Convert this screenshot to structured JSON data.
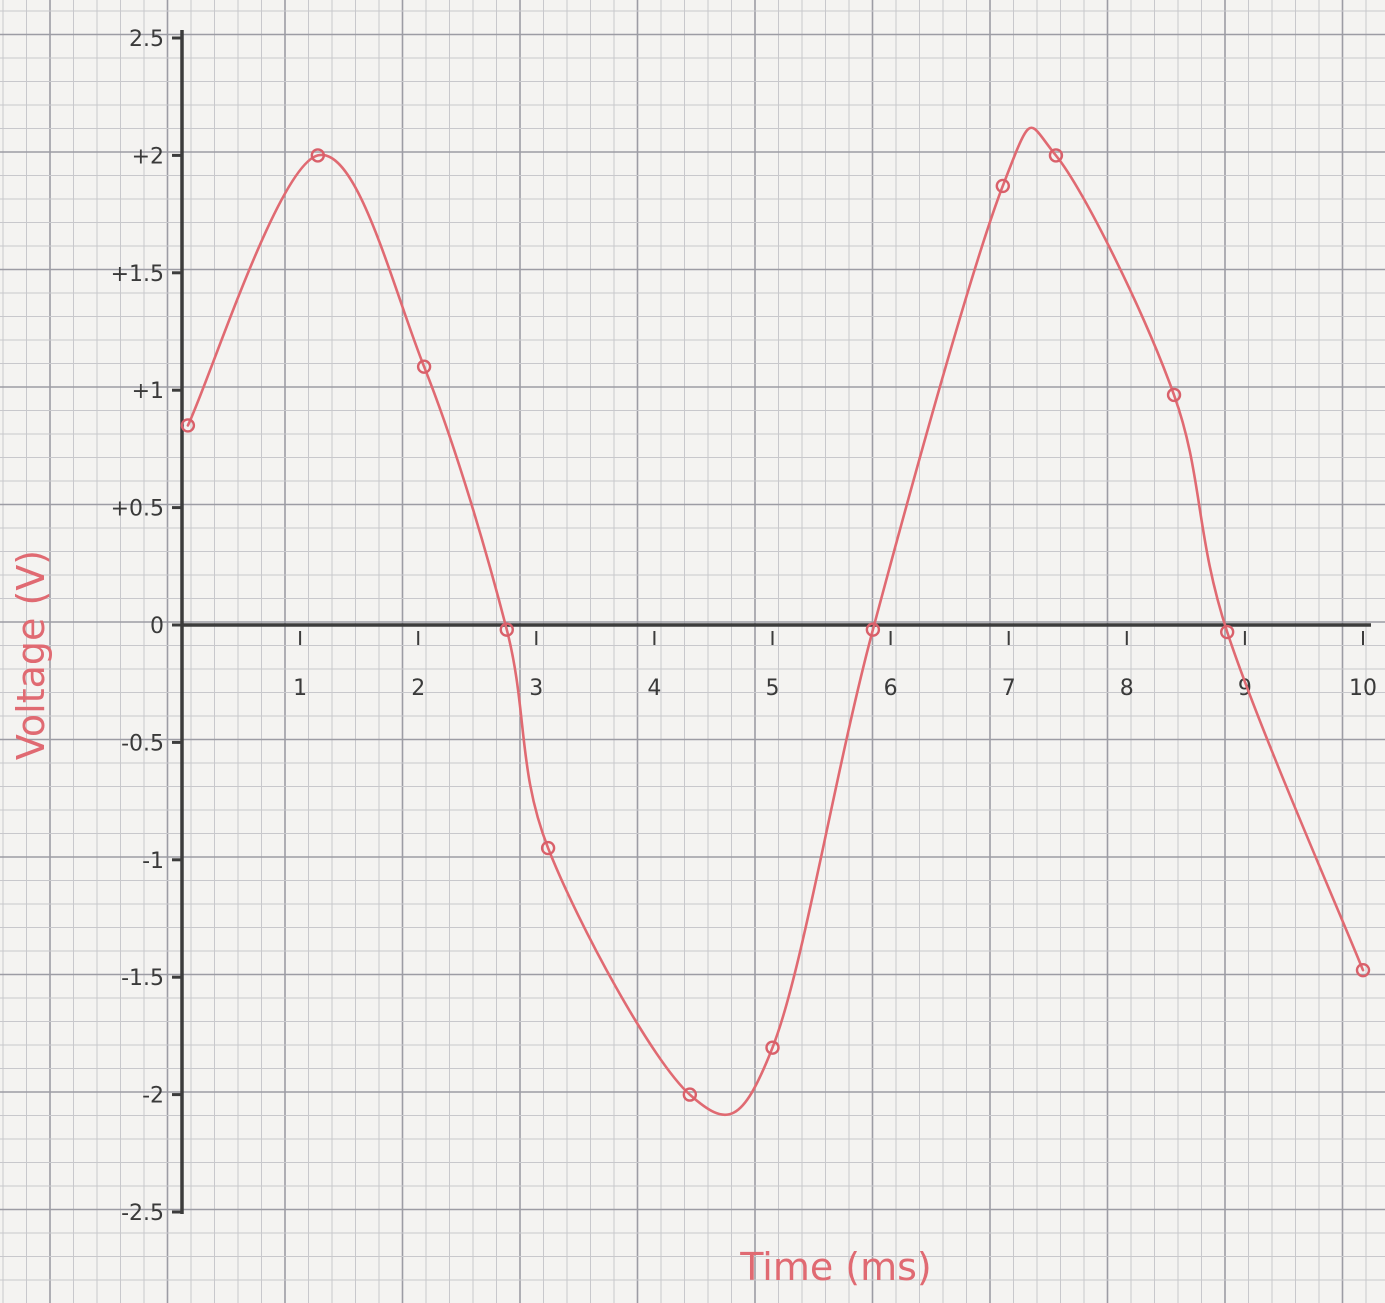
{
  "colors": {
    "paper": "#f4f3f1",
    "grid_minor": "#c8c8cc",
    "grid_major": "#9c9ca4",
    "axis": "#3c3c3c",
    "ink": "#3a3a3a",
    "curve": "#e06a72",
    "marker": "#d9606a"
  },
  "chart_data": {
    "type": "line",
    "title": "",
    "xlabel": "Time (ms)",
    "ylabel": "Voltage (V)",
    "xlim": [
      0,
      10
    ],
    "ylim": [
      -2.5,
      2.5
    ],
    "grid": true,
    "x_ticks": [
      {
        "value": 1,
        "label": "1"
      },
      {
        "value": 2,
        "label": "2"
      },
      {
        "value": 3,
        "label": "3"
      },
      {
        "value": 4,
        "label": "4"
      },
      {
        "value": 5,
        "label": "5"
      },
      {
        "value": 6,
        "label": "6"
      },
      {
        "value": 7,
        "label": "7"
      },
      {
        "value": 8,
        "label": "8"
      },
      {
        "value": 9,
        "label": "9"
      },
      {
        "value": 10,
        "label": "10"
      }
    ],
    "y_ticks": [
      {
        "value": 2.5,
        "label": "2.5"
      },
      {
        "value": 2,
        "label": "+2"
      },
      {
        "value": 1.5,
        "label": "+1.5"
      },
      {
        "value": 1,
        "label": "+1"
      },
      {
        "value": 0.5,
        "label": "+0.5"
      },
      {
        "value": 0,
        "label": "0"
      },
      {
        "value": -0.5,
        "label": "-0.5"
      },
      {
        "value": -1,
        "label": "-1"
      },
      {
        "value": -1.5,
        "label": "-1.5"
      },
      {
        "value": -2,
        "label": "-2"
      },
      {
        "value": -2.5,
        "label": "-2.5"
      }
    ],
    "series": [
      {
        "points": [
          {
            "x": 0.05,
            "y": 0.85
          },
          {
            "x": 1.15,
            "y": 2.0
          },
          {
            "x": 2.05,
            "y": 1.1
          },
          {
            "x": 2.75,
            "y": -0.02
          },
          {
            "x": 3.1,
            "y": -0.95
          },
          {
            "x": 4.3,
            "y": -2.0
          },
          {
            "x": 5.0,
            "y": -1.8
          },
          {
            "x": 5.85,
            "y": -0.02
          },
          {
            "x": 6.95,
            "y": 1.87
          },
          {
            "x": 7.4,
            "y": 2.0
          },
          {
            "x": 8.4,
            "y": 0.98
          },
          {
            "x": 8.85,
            "y": -0.03
          },
          {
            "x": 10.0,
            "y": -1.47
          }
        ]
      }
    ]
  }
}
